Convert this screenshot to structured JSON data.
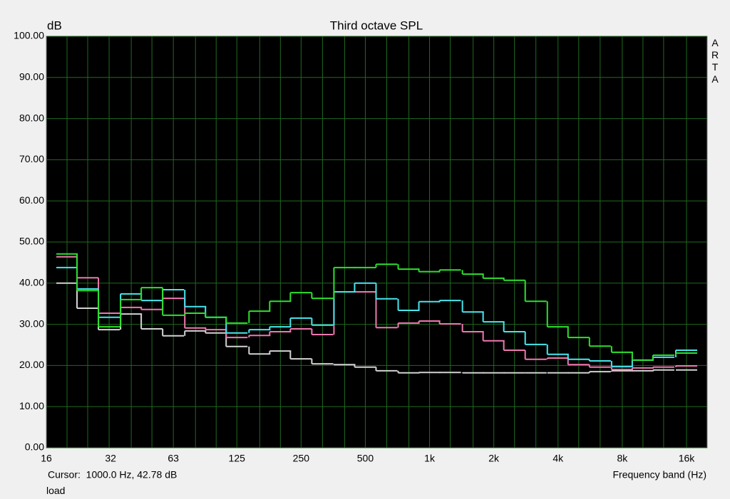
{
  "chart_data": {
    "type": "step",
    "title": "Third octave SPL",
    "y_label": "dB",
    "x_label": "Frequency band (Hz)",
    "side_label": "ARTA",
    "cursor_text": "Cursor:  1000.0 Hz, 42.78 dB",
    "footer_text": "load",
    "x_scale": "log",
    "grid": true,
    "xlim": [
      16,
      20000
    ],
    "xticks": [
      16,
      32,
      63,
      125,
      250,
      500,
      {
        "value": 1000,
        "label": "1k"
      },
      {
        "value": 2000,
        "label": "2k"
      },
      {
        "value": 4000,
        "label": "4k"
      },
      {
        "value": 8000,
        "label": "8k"
      },
      {
        "value": 16000,
        "label": "16k"
      }
    ],
    "ylim": [
      0,
      100
    ],
    "yticks": [
      {
        "value": 0,
        "label": "0.00"
      },
      {
        "value": 10,
        "label": "10.00"
      },
      {
        "value": 20,
        "label": "20.00"
      },
      {
        "value": 30,
        "label": "30.00"
      },
      {
        "value": 40,
        "label": "40.00"
      },
      {
        "value": 50,
        "label": "50.00"
      },
      {
        "value": 60,
        "label": "60.00"
      },
      {
        "value": 70,
        "label": "70.00"
      },
      {
        "value": 80,
        "label": "80.00"
      },
      {
        "value": 90,
        "label": "90.00"
      },
      {
        "value": 100,
        "label": "100.00"
      }
    ],
    "x": [
      20,
      25,
      31.5,
      40,
      50,
      63,
      80,
      100,
      125,
      160,
      200,
      250,
      315,
      400,
      500,
      630,
      800,
      1000,
      1250,
      1600,
      2000,
      2500,
      3150,
      4000,
      5000,
      6300,
      8000,
      10000,
      12500,
      16000
    ],
    "series": [
      {
        "color": "#d2d2d2",
        "values": [
          40.0,
          33.9,
          28.7,
          32.5,
          28.9,
          27.2,
          28.4,
          27.9,
          24.6,
          22.8,
          23.5,
          21.6,
          20.4,
          20.2,
          19.6,
          18.7,
          18.2,
          18.3,
          18.3,
          18.2,
          18.2,
          18.2,
          18.2,
          18.2,
          18.2,
          18.5,
          18.7,
          18.7,
          18.9,
          18.9
        ]
      },
      {
        "color": "#ee78b0",
        "values": [
          46.4,
          41.3,
          32.7,
          34.1,
          33.6,
          36.3,
          29.1,
          28.7,
          26.8,
          27.3,
          28.2,
          28.9,
          27.5,
          37.9,
          37.9,
          29.2,
          30.3,
          30.8,
          30.1,
          28.2,
          26.0,
          23.7,
          21.5,
          21.8,
          20.2,
          19.6,
          19.0,
          19.4,
          19.6,
          19.9
        ]
      },
      {
        "color": "#48e6ee",
        "values": [
          43.8,
          38.6,
          31.7,
          37.4,
          35.8,
          38.4,
          34.3,
          31.7,
          27.9,
          28.7,
          29.4,
          31.5,
          29.8,
          37.9,
          40.0,
          36.2,
          33.4,
          35.5,
          35.8,
          33.0,
          30.6,
          28.2,
          25.1,
          22.7,
          21.5,
          21.1,
          19.7,
          21.3,
          22.0,
          23.7
        ]
      },
      {
        "color": "#2ee02e",
        "values": [
          47.1,
          38.2,
          29.4,
          36.0,
          38.9,
          32.2,
          32.7,
          31.7,
          30.3,
          33.2,
          35.6,
          37.7,
          36.3,
          43.8,
          43.8,
          44.6,
          43.4,
          42.8,
          43.2,
          42.2,
          41.2,
          40.7,
          35.6,
          29.4,
          26.8,
          24.7,
          23.2,
          21.3,
          22.5,
          23.0
        ]
      }
    ]
  }
}
